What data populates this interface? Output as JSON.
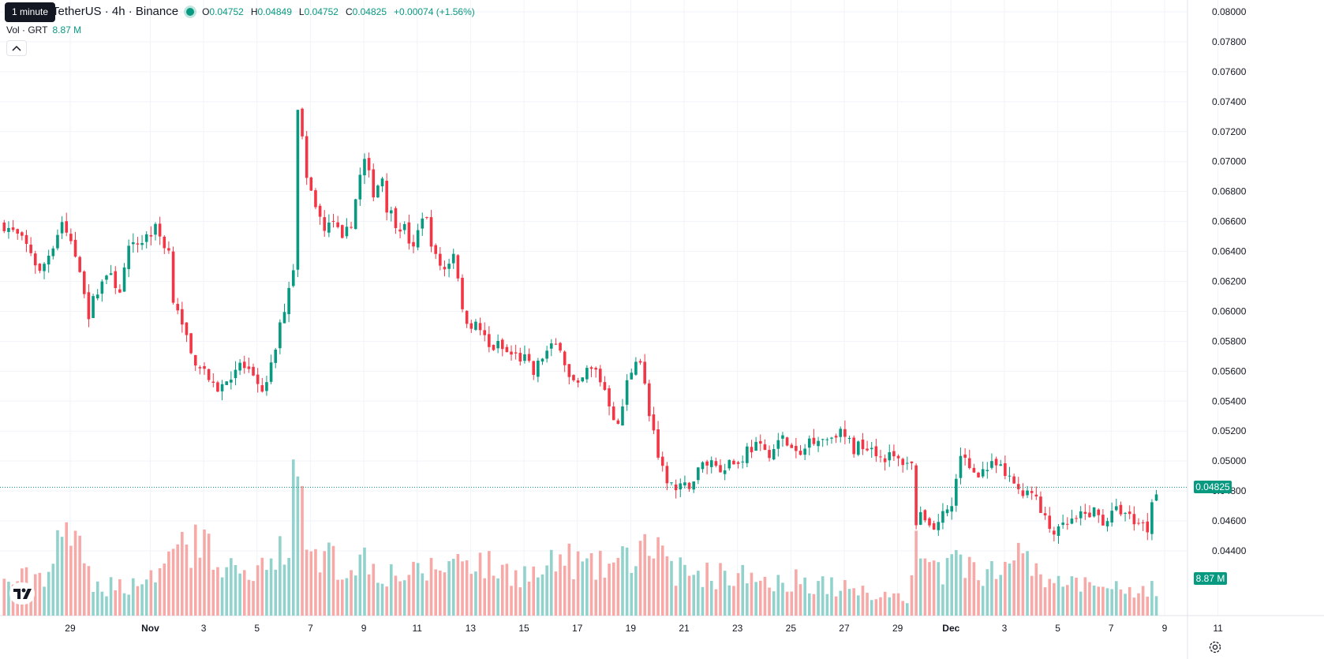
{
  "legend": {
    "title": "TetherUS · 4h · Binance",
    "o_label": "O",
    "o_value": "0.04752",
    "h_label": "H",
    "h_value": "0.04849",
    "l_label": "L",
    "l_value": "0.04752",
    "c_label": "C",
    "c_value": "0.04825",
    "change": "+0.00074 (+1.56%)"
  },
  "tooltip": "1 minute",
  "volume_legend": {
    "label": "Vol · GRT",
    "value": "8.87 M"
  },
  "price_tag": "0.04825",
  "volume_tag": "8.87 M",
  "colors": {
    "up": "#089981",
    "down": "#f23645",
    "up_vol": "#92d2cc",
    "down_vol": "#f7a9a7",
    "grid": "#f0f3fa",
    "text": "#131722"
  },
  "icons": {
    "collapse": "chevron-up-icon",
    "logo": "tradingview-logo-icon",
    "settings": "gear-icon"
  },
  "chart_data": {
    "type": "candlestick",
    "title": "",
    "interval": "4h",
    "y_ticks": [
      "0.04400",
      "0.04600",
      "0.04800",
      "0.05000",
      "0.05200",
      "0.05400",
      "0.05600",
      "0.05800",
      "0.06000",
      "0.06200",
      "0.06400",
      "0.06600",
      "0.06800",
      "0.07000",
      "0.07200",
      "0.07400",
      "0.07600",
      "0.07800",
      "0.08000"
    ],
    "ylim": [
      0.0431,
      0.0805
    ],
    "x_ticks": [
      {
        "label": "29",
        "i": 7
      },
      {
        "label": "Nov",
        "i": 25
      },
      {
        "label": "3",
        "i": 37
      },
      {
        "label": "5",
        "i": 49
      },
      {
        "label": "7",
        "i": 61
      },
      {
        "label": "9",
        "i": 73
      },
      {
        "label": "11",
        "i": 85
      },
      {
        "label": "13",
        "i": 97
      },
      {
        "label": "15",
        "i": 109
      },
      {
        "label": "17",
        "i": 121
      },
      {
        "label": "19",
        "i": 133
      },
      {
        "label": "21",
        "i": 145
      },
      {
        "label": "23",
        "i": 157
      },
      {
        "label": "25",
        "i": 169
      },
      {
        "label": "27",
        "i": 181
      },
      {
        "label": "29",
        "i": 193
      },
      {
        "label": "Dec",
        "i": 205
      },
      {
        "label": "3",
        "i": 217
      },
      {
        "label": "5",
        "i": 229
      },
      {
        "label": "7",
        "i": 241
      },
      {
        "label": "9",
        "i": 253
      },
      {
        "label": "11",
        "i": 265
      }
    ],
    "last_price": 0.04825,
    "grid": true,
    "anchors": [
      [
        0,
        0.0658
      ],
      [
        3,
        0.065
      ],
      [
        6,
        0.064
      ],
      [
        8,
        0.0625
      ],
      [
        11,
        0.0645
      ],
      [
        13,
        0.066
      ],
      [
        15,
        0.0645
      ],
      [
        17,
        0.063
      ],
      [
        19,
        0.0598
      ],
      [
        21,
        0.0615
      ],
      [
        23,
        0.0625
      ],
      [
        26,
        0.0615
      ],
      [
        28,
        0.064
      ],
      [
        31,
        0.0648
      ],
      [
        34,
        0.0655
      ],
      [
        37,
        0.064
      ],
      [
        38,
        0.061
      ],
      [
        40,
        0.0595
      ],
      [
        42,
        0.057
      ],
      [
        45,
        0.0562
      ],
      [
        47,
        0.0548
      ],
      [
        49,
        0.055
      ],
      [
        51,
        0.0558
      ],
      [
        53,
        0.0565
      ],
      [
        55,
        0.0558
      ],
      [
        57,
        0.0548
      ],
      [
        59,
        0.055
      ],
      [
        61,
        0.0575
      ],
      [
        63,
        0.0603
      ],
      [
        65,
        0.063
      ],
      [
        66,
        0.0738
      ],
      [
        67,
        0.0716
      ],
      [
        68,
        0.0685
      ],
      [
        70,
        0.0672
      ],
      [
        72,
        0.0652
      ],
      [
        74,
        0.0661
      ],
      [
        76,
        0.0645
      ],
      [
        78,
        0.066
      ],
      [
        80,
        0.069
      ],
      [
        81,
        0.07
      ],
      [
        83,
        0.068
      ],
      [
        85,
        0.069
      ],
      [
        86,
        0.067
      ],
      [
        88,
        0.066
      ],
      [
        90,
        0.0655
      ],
      [
        92,
        0.064
      ],
      [
        94,
        0.0665
      ],
      [
        95,
        0.066
      ],
      [
        97,
        0.0635
      ],
      [
        99,
        0.0628
      ],
      [
        101,
        0.064
      ],
      [
        102,
        0.0625
      ],
      [
        103,
        0.0598
      ],
      [
        105,
        0.0592
      ],
      [
        107,
        0.0588
      ],
      [
        109,
        0.0575
      ],
      [
        111,
        0.0577
      ],
      [
        113,
        0.0572
      ],
      [
        115,
        0.057
      ],
      [
        117,
        0.0568
      ],
      [
        119,
        0.0558
      ],
      [
        121,
        0.057
      ],
      [
        123,
        0.0575
      ],
      [
        125,
        0.0578
      ],
      [
        127,
        0.0555
      ],
      [
        129,
        0.0548
      ],
      [
        131,
        0.056
      ],
      [
        133,
        0.056
      ],
      [
        135,
        0.0548
      ],
      [
        138,
        0.0522
      ],
      [
        140,
        0.0552
      ],
      [
        142,
        0.057
      ],
      [
        143,
        0.0567
      ],
      [
        145,
        0.0532
      ],
      [
        146,
        0.052
      ],
      [
        147,
        0.0498
      ],
      [
        149,
        0.0488
      ],
      [
        151,
        0.048
      ],
      [
        153,
        0.0482
      ],
      [
        155,
        0.0488
      ],
      [
        157,
        0.0498
      ],
      [
        159,
        0.05
      ],
      [
        161,
        0.0495
      ],
      [
        163,
        0.05
      ],
      [
        165,
        0.0498
      ],
      [
        167,
        0.0508
      ],
      [
        169,
        0.051
      ],
      [
        171,
        0.0505
      ],
      [
        173,
        0.0508
      ],
      [
        175,
        0.0515
      ],
      [
        177,
        0.0508
      ],
      [
        179,
        0.0502
      ],
      [
        181,
        0.0515
      ],
      [
        183,
        0.0516
      ],
      [
        185,
        0.0515
      ],
      [
        187,
        0.052
      ],
      [
        189,
        0.0516
      ],
      [
        191,
        0.0508
      ],
      [
        193,
        0.0512
      ],
      [
        195,
        0.051
      ],
      [
        197,
        0.0503
      ],
      [
        199,
        0.0503
      ],
      [
        201,
        0.05
      ],
      [
        203,
        0.05
      ],
      [
        204,
        0.0497
      ],
      [
        205,
        0.046
      ],
      [
        207,
        0.0463
      ],
      [
        209,
        0.0455
      ],
      [
        211,
        0.0465
      ],
      [
        213,
        0.047
      ],
      [
        214,
        0.0488
      ],
      [
        215,
        0.0505
      ],
      [
        217,
        0.0495
      ],
      [
        219,
        0.0493
      ],
      [
        221,
        0.0495
      ],
      [
        223,
        0.0497
      ],
      [
        225,
        0.049
      ],
      [
        227,
        0.0485
      ],
      [
        229,
        0.048
      ],
      [
        231,
        0.0482
      ],
      [
        233,
        0.0465
      ],
      [
        235,
        0.0455
      ],
      [
        237,
        0.0452
      ],
      [
        239,
        0.0458
      ],
      [
        241,
        0.046
      ],
      [
        243,
        0.0464
      ],
      [
        245,
        0.0466
      ],
      [
        247,
        0.046
      ],
      [
        249,
        0.0464
      ],
      [
        251,
        0.0468
      ],
      [
        253,
        0.0462
      ],
      [
        255,
        0.046
      ],
      [
        257,
        0.0455
      ],
      [
        258,
        0.0475
      ],
      [
        259,
        0.0482
      ]
    ],
    "volume_anchors": [
      [
        0,
        0.22
      ],
      [
        10,
        0.3
      ],
      [
        14,
        0.62
      ],
      [
        20,
        0.2
      ],
      [
        30,
        0.22
      ],
      [
        38,
        0.4
      ],
      [
        40,
        0.45
      ],
      [
        45,
        0.5
      ],
      [
        48,
        0.4
      ],
      [
        55,
        0.25
      ],
      [
        60,
        0.35
      ],
      [
        64,
        0.52
      ],
      [
        66,
        1.0
      ],
      [
        67,
        0.78
      ],
      [
        68,
        0.4
      ],
      [
        72,
        0.45
      ],
      [
        76,
        0.3
      ],
      [
        80,
        0.42
      ],
      [
        85,
        0.3
      ],
      [
        92,
        0.28
      ],
      [
        100,
        0.36
      ],
      [
        104,
        0.42
      ],
      [
        110,
        0.32
      ],
      [
        120,
        0.28
      ],
      [
        126,
        0.4
      ],
      [
        132,
        0.32
      ],
      [
        140,
        0.38
      ],
      [
        143,
        0.45
      ],
      [
        146,
        0.44
      ],
      [
        150,
        0.32
      ],
      [
        160,
        0.28
      ],
      [
        170,
        0.26
      ],
      [
        180,
        0.24
      ],
      [
        190,
        0.18
      ],
      [
        200,
        0.14
      ],
      [
        203,
        0.12
      ],
      [
        205,
        0.48
      ],
      [
        208,
        0.3
      ],
      [
        215,
        0.38
      ],
      [
        220,
        0.3
      ],
      [
        230,
        0.42
      ],
      [
        233,
        0.3
      ],
      [
        240,
        0.22
      ],
      [
        250,
        0.18
      ],
      [
        255,
        0.14
      ],
      [
        259,
        0.2
      ]
    ],
    "volume_spikes": [
      [
        14,
        0.55
      ],
      [
        65,
        0.92
      ],
      [
        66,
        0.82
      ],
      [
        205,
        0.5
      ],
      [
        215,
        0.36
      ],
      [
        230,
        0.38
      ],
      [
        39,
        0.42
      ],
      [
        72,
        0.38
      ],
      [
        144,
        0.48
      ]
    ]
  }
}
